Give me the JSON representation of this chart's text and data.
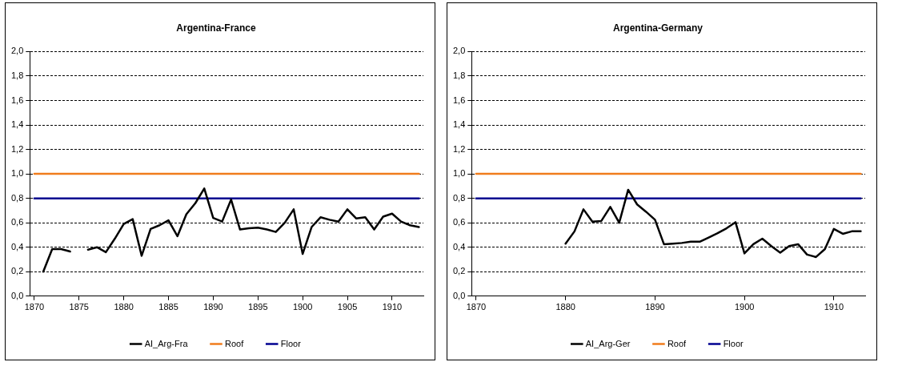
{
  "chart_data": [
    {
      "type": "line",
      "title": "Argentina-France",
      "x": [
        1870,
        1871,
        1872,
        1873,
        1874,
        1875,
        1876,
        1877,
        1878,
        1879,
        1880,
        1881,
        1882,
        1883,
        1884,
        1885,
        1886,
        1887,
        1888,
        1889,
        1890,
        1891,
        1892,
        1893,
        1894,
        1895,
        1896,
        1897,
        1898,
        1899,
        1900,
        1901,
        1902,
        1903,
        1904,
        1905,
        1906,
        1907,
        1908,
        1909,
        1910,
        1911,
        1912,
        1913
      ],
      "series": [
        {
          "name": "AI_Arg-Fra",
          "color": "#000000",
          "values": [
            null,
            0.2,
            0.385,
            0.385,
            0.365,
            null,
            0.38,
            0.4,
            0.36,
            0.47,
            0.59,
            0.63,
            0.33,
            0.55,
            0.58,
            0.62,
            0.49,
            0.67,
            0.76,
            0.88,
            0.64,
            0.61,
            0.79,
            0.545,
            0.555,
            0.56,
            0.545,
            0.525,
            0.6,
            0.71,
            0.345,
            0.565,
            0.645,
            0.625,
            0.61,
            0.71,
            0.635,
            0.645,
            0.545,
            0.65,
            0.675,
            0.61,
            0.58,
            0.565
          ]
        },
        {
          "name": "Roof",
          "color": "#f07c1c",
          "values": [
            1,
            1,
            1,
            1,
            1,
            1,
            1,
            1,
            1,
            1,
            1,
            1,
            1,
            1,
            1,
            1,
            1,
            1,
            1,
            1,
            1,
            1,
            1,
            1,
            1,
            1,
            1,
            1,
            1,
            1,
            1,
            1,
            1,
            1,
            1,
            1,
            1,
            1,
            1,
            1,
            1,
            1,
            1,
            1
          ]
        },
        {
          "name": "Floor",
          "color": "#000090",
          "values": [
            0.8,
            0.8,
            0.8,
            0.8,
            0.8,
            0.8,
            0.8,
            0.8,
            0.8,
            0.8,
            0.8,
            0.8,
            0.8,
            0.8,
            0.8,
            0.8,
            0.8,
            0.8,
            0.8,
            0.8,
            0.8,
            0.8,
            0.8,
            0.8,
            0.8,
            0.8,
            0.8,
            0.8,
            0.8,
            0.8,
            0.8,
            0.8,
            0.8,
            0.8,
            0.8,
            0.8,
            0.8,
            0.8,
            0.8,
            0.8,
            0.8,
            0.8,
            0.8,
            0.8
          ]
        }
      ],
      "xlim": [
        1869.5,
        1913.5
      ],
      "xticks": [
        1870,
        1875,
        1880,
        1885,
        1890,
        1895,
        1900,
        1905,
        1910
      ],
      "ylim": [
        0,
        2
      ],
      "yticks": [
        {
          "value": 0,
          "label": "0,0"
        },
        {
          "value": 0.2,
          "label": "0,2"
        },
        {
          "value": 0.4,
          "label": "0,4"
        },
        {
          "value": 0.6,
          "label": "0,6"
        },
        {
          "value": 0.8,
          "label": "0,8"
        },
        {
          "value": 1.0,
          "label": "1,0"
        },
        {
          "value": 1.2,
          "label": "1,2"
        },
        {
          "value": 1.4,
          "label": "1,4"
        },
        {
          "value": 1.6,
          "label": "1,6"
        },
        {
          "value": 1.8,
          "label": "1,8"
        },
        {
          "value": 2.0,
          "label": "2,0"
        }
      ],
      "grid": "y",
      "legend": "bottom",
      "marker": "none",
      "line_style": "solid"
    },
    {
      "type": "line",
      "title": "Argentina-Germany",
      "x": [
        1870,
        1871,
        1872,
        1873,
        1874,
        1875,
        1876,
        1877,
        1878,
        1879,
        1880,
        1881,
        1882,
        1883,
        1884,
        1885,
        1886,
        1887,
        1888,
        1889,
        1890,
        1891,
        1892,
        1893,
        1894,
        1895,
        1896,
        1897,
        1898,
        1899,
        1900,
        1901,
        1902,
        1903,
        1904,
        1905,
        1906,
        1907,
        1908,
        1909,
        1910,
        1911,
        1912,
        1913
      ],
      "series": [
        {
          "name": "AI_Arg-Ger",
          "color": "#000000",
          "values": [
            null,
            null,
            null,
            null,
            null,
            null,
            null,
            null,
            null,
            null,
            0.43,
            0.53,
            0.71,
            0.61,
            0.615,
            0.73,
            0.6,
            0.87,
            0.75,
            0.69,
            0.625,
            0.425,
            0.43,
            0.435,
            0.445,
            0.445,
            0.48,
            0.515,
            0.555,
            0.605,
            0.35,
            0.425,
            0.47,
            0.41,
            0.355,
            0.41,
            0.425,
            0.34,
            0.32,
            0.385,
            0.55,
            0.51,
            0.53,
            0.53
          ]
        },
        {
          "name": "Roof",
          "color": "#f07c1c",
          "values": [
            1,
            1,
            1,
            1,
            1,
            1,
            1,
            1,
            1,
            1,
            1,
            1,
            1,
            1,
            1,
            1,
            1,
            1,
            1,
            1,
            1,
            1,
            1,
            1,
            1,
            1,
            1,
            1,
            1,
            1,
            1,
            1,
            1,
            1,
            1,
            1,
            1,
            1,
            1,
            1,
            1,
            1,
            1,
            1
          ]
        },
        {
          "name": "Floor",
          "color": "#000090",
          "values": [
            0.8,
            0.8,
            0.8,
            0.8,
            0.8,
            0.8,
            0.8,
            0.8,
            0.8,
            0.8,
            0.8,
            0.8,
            0.8,
            0.8,
            0.8,
            0.8,
            0.8,
            0.8,
            0.8,
            0.8,
            0.8,
            0.8,
            0.8,
            0.8,
            0.8,
            0.8,
            0.8,
            0.8,
            0.8,
            0.8,
            0.8,
            0.8,
            0.8,
            0.8,
            0.8,
            0.8,
            0.8,
            0.8,
            0.8,
            0.8,
            0.8,
            0.8,
            0.8,
            0.8
          ]
        }
      ],
      "xlim": [
        1869.5,
        1913.5
      ],
      "xticks": [
        1870,
        1880,
        1890,
        1900,
        1910
      ],
      "ylim": [
        0,
        2
      ],
      "yticks": [
        {
          "value": 0,
          "label": "0,0"
        },
        {
          "value": 0.2,
          "label": "0,2"
        },
        {
          "value": 0.4,
          "label": "0,4"
        },
        {
          "value": 0.6,
          "label": "0,6"
        },
        {
          "value": 0.8,
          "label": "0,8"
        },
        {
          "value": 1.0,
          "label": "1,0"
        },
        {
          "value": 1.2,
          "label": "1,2"
        },
        {
          "value": 1.4,
          "label": "1,4"
        },
        {
          "value": 1.6,
          "label": "1,6"
        },
        {
          "value": 1.8,
          "label": "1,8"
        },
        {
          "value": 2.0,
          "label": "2,0"
        }
      ],
      "grid": "y",
      "legend": "bottom",
      "marker": "none",
      "line_style": "solid"
    }
  ]
}
